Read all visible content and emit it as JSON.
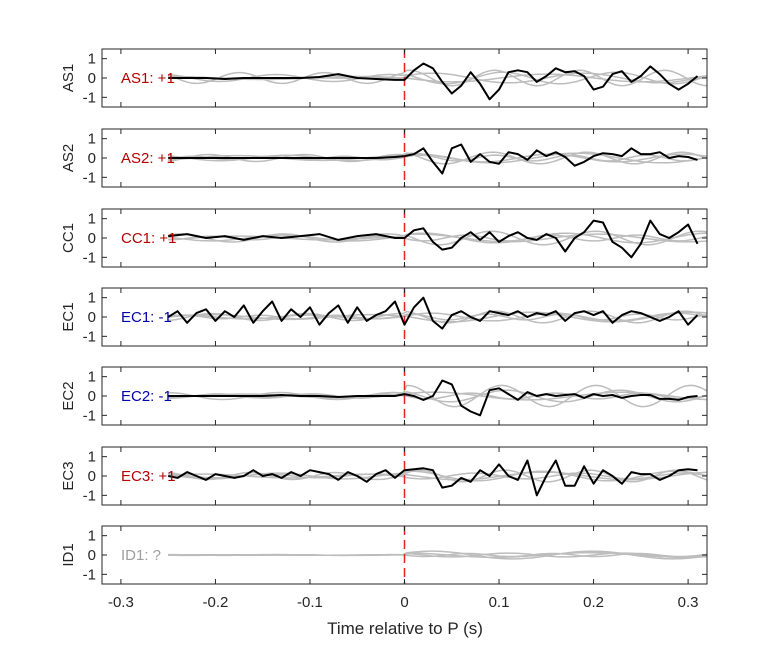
{
  "chart_data": {
    "type": "line",
    "xlabel": "Time relative to P (s)",
    "xlim": [
      -0.32,
      0.32
    ],
    "xticks": [
      -0.3,
      -0.2,
      -0.1,
      0,
      0.1,
      0.2,
      0.3
    ],
    "xtick_labels": [
      "-0.3",
      "-0.2",
      "-0.1",
      "0",
      "0.1",
      "0.2",
      "0.3"
    ],
    "ylim": [
      -1.5,
      1.5
    ],
    "yticks": [
      1,
      0,
      -1
    ],
    "ytick_labels": [
      "1",
      "0",
      "-1"
    ],
    "reference_line_x": 0,
    "colors": {
      "main": "#000000",
      "background": "#bdbdbd",
      "reference": "#e8241b",
      "positive": "#b30000",
      "negative": "#0000a8",
      "unknown": "#9e9e9e",
      "axis": "#262626"
    },
    "panels": [
      {
        "ylabel": "AS1",
        "label": "AS1: +1",
        "polarity": "positive",
        "x": [
          -0.25,
          -0.23,
          -0.21,
          -0.19,
          -0.17,
          -0.15,
          -0.13,
          -0.11,
          -0.09,
          -0.07,
          -0.05,
          -0.03,
          -0.01,
          0,
          0.01,
          0.02,
          0.03,
          0.04,
          0.05,
          0.06,
          0.07,
          0.08,
          0.09,
          0.1,
          0.11,
          0.12,
          0.13,
          0.14,
          0.15,
          0.16,
          0.17,
          0.18,
          0.19,
          0.2,
          0.21,
          0.22,
          0.23,
          0.24,
          0.25,
          0.26,
          0.27,
          0.28,
          0.29,
          0.3,
          0.31
        ],
        "y": [
          0,
          0,
          0,
          -0.05,
          0,
          0,
          0,
          0,
          0.05,
          0.2,
          0,
          -0.05,
          -0.1,
          -0.1,
          0.4,
          0.75,
          0.5,
          -0.2,
          -0.8,
          -0.4,
          0.3,
          -0.3,
          -1.1,
          -0.6,
          0.3,
          0.4,
          0.3,
          -0.2,
          0.1,
          0.5,
          0.3,
          0.35,
          0.1,
          -0.6,
          -0.45,
          0.2,
          0.35,
          -0.2,
          0.1,
          0.6,
          0.2,
          -0.3,
          -0.6,
          -0.3,
          0.1
        ],
        "background": [
          {
            "amp": 0.25,
            "period": 0.16,
            "phase": 0.4,
            "decay": 0.02
          },
          {
            "amp": 0.4,
            "period": 0.09,
            "phase": 1.2,
            "decay": 0.7
          },
          {
            "amp": 0.3,
            "period": 0.12,
            "phase": 2.4,
            "decay": 0.6
          },
          {
            "amp": 0.2,
            "period": 0.2,
            "phase": 3.1,
            "decay": 0.4
          }
        ]
      },
      {
        "ylabel": "AS2",
        "label": "AS2: +1",
        "polarity": "positive",
        "x": [
          -0.25,
          -0.23,
          -0.21,
          -0.19,
          -0.17,
          -0.15,
          -0.13,
          -0.11,
          -0.09,
          -0.07,
          -0.05,
          -0.03,
          -0.01,
          0,
          0.01,
          0.02,
          0.03,
          0.04,
          0.05,
          0.06,
          0.07,
          0.08,
          0.09,
          0.1,
          0.11,
          0.12,
          0.13,
          0.14,
          0.15,
          0.16,
          0.17,
          0.18,
          0.19,
          0.2,
          0.21,
          0.22,
          0.23,
          0.24,
          0.25,
          0.26,
          0.27,
          0.28,
          0.29,
          0.3,
          0.31
        ],
        "y": [
          0,
          0,
          0,
          0,
          0,
          0,
          0,
          0,
          0,
          0,
          0,
          0,
          0.05,
          0.1,
          0.2,
          0.5,
          -0.2,
          -0.8,
          0.5,
          0.7,
          -0.2,
          0.2,
          -0.2,
          -0.3,
          0.3,
          0.2,
          -0.1,
          0.4,
          0.1,
          0.3,
          0.05,
          -0.4,
          -0.2,
          0.1,
          0.25,
          0.2,
          0.1,
          0.5,
          0.2,
          0.2,
          0.3,
          0,
          0.1,
          0.05,
          -0.1
        ],
        "background": [
          {
            "amp": 0.2,
            "period": 0.14,
            "phase": 0.9,
            "decay": 0.7
          },
          {
            "amp": 0.3,
            "period": 0.1,
            "phase": 2.0,
            "decay": 0.6
          },
          {
            "amp": 0.25,
            "period": 0.18,
            "phase": 1.5,
            "decay": 0.5
          },
          {
            "amp": 0.15,
            "period": 0.08,
            "phase": 0.3,
            "decay": 0.6
          }
        ]
      },
      {
        "ylabel": "CC1",
        "label": "CC1: +1",
        "polarity": "positive",
        "x": [
          -0.25,
          -0.23,
          -0.21,
          -0.19,
          -0.17,
          -0.15,
          -0.13,
          -0.11,
          -0.09,
          -0.07,
          -0.05,
          -0.03,
          -0.01,
          0,
          0.01,
          0.02,
          0.03,
          0.04,
          0.05,
          0.06,
          0.07,
          0.08,
          0.09,
          0.1,
          0.11,
          0.12,
          0.13,
          0.14,
          0.15,
          0.16,
          0.17,
          0.18,
          0.19,
          0.2,
          0.21,
          0.22,
          0.23,
          0.24,
          0.25,
          0.26,
          0.27,
          0.28,
          0.29,
          0.3,
          0.31
        ],
        "y": [
          0.1,
          0.2,
          0,
          0.1,
          -0.1,
          0.1,
          0,
          0.1,
          0.2,
          -0.1,
          0.1,
          0.2,
          0,
          0,
          0.4,
          0.5,
          -0.2,
          -0.6,
          -0.5,
          0,
          0.3,
          -0.1,
          0.3,
          -0.2,
          0.1,
          0.3,
          0,
          -0.1,
          0.2,
          0,
          -0.7,
          0,
          0.3,
          0.9,
          0.8,
          -0.2,
          -0.5,
          -1,
          -0.3,
          0.9,
          0.2,
          0,
          0.3,
          0.7,
          -0.3
        ],
        "background": [
          {
            "amp": 0.25,
            "period": 0.15,
            "phase": 0.7,
            "decay": 0.6
          },
          {
            "amp": 0.35,
            "period": 0.11,
            "phase": 2.6,
            "decay": 0.6
          },
          {
            "amp": 0.2,
            "period": 0.19,
            "phase": 1.1,
            "decay": 0.5
          },
          {
            "amp": 0.15,
            "period": 0.09,
            "phase": 3.3,
            "decay": 0.6
          }
        ]
      },
      {
        "ylabel": "EC1",
        "label": "EC1: -1",
        "polarity": "negative",
        "x": [
          -0.25,
          -0.24,
          -0.23,
          -0.22,
          -0.21,
          -0.2,
          -0.19,
          -0.18,
          -0.17,
          -0.16,
          -0.15,
          -0.14,
          -0.13,
          -0.12,
          -0.11,
          -0.1,
          -0.09,
          -0.08,
          -0.07,
          -0.06,
          -0.05,
          -0.04,
          -0.03,
          -0.02,
          -0.01,
          0,
          0.01,
          0.02,
          0.03,
          0.04,
          0.05,
          0.06,
          0.07,
          0.08,
          0.09,
          0.1,
          0.11,
          0.12,
          0.13,
          0.14,
          0.15,
          0.16,
          0.17,
          0.18,
          0.19,
          0.2,
          0.21,
          0.22,
          0.23,
          0.24,
          0.25,
          0.26,
          0.27,
          0.28,
          0.29,
          0.3,
          0.31
        ],
        "y": [
          0,
          0.3,
          -0.3,
          0.2,
          0.4,
          -0.2,
          0.3,
          0,
          0.6,
          -0.3,
          0.3,
          0.8,
          -0.2,
          0.4,
          0,
          0.5,
          -0.4,
          0.2,
          0.6,
          -0.3,
          0.5,
          -0.2,
          0.1,
          0.3,
          0.8,
          -0.4,
          0.5,
          1.0,
          -0.2,
          -0.6,
          0.1,
          0.3,
          0,
          -0.2,
          0.3,
          0.2,
          0.1,
          0.3,
          0,
          0.2,
          0.1,
          0.3,
          -0.2,
          0.2,
          0.3,
          0.1,
          0.3,
          -0.3,
          0.1,
          0.3,
          0.2,
          0,
          -0.2,
          0,
          0.3,
          -0.4,
          0.1
        ],
        "background": [
          {
            "amp": 0.2,
            "period": 0.13,
            "phase": 0.2,
            "decay": 0.5
          },
          {
            "amp": 0.3,
            "period": 0.1,
            "phase": 1.8,
            "decay": 0.6
          },
          {
            "amp": 0.25,
            "period": 0.17,
            "phase": 2.9,
            "decay": 0.5
          },
          {
            "amp": 0.15,
            "period": 0.08,
            "phase": 1.0,
            "decay": 0.6
          }
        ]
      },
      {
        "ylabel": "EC2",
        "label": "EC2: -1",
        "polarity": "negative",
        "x": [
          -0.25,
          -0.23,
          -0.21,
          -0.19,
          -0.17,
          -0.15,
          -0.13,
          -0.11,
          -0.09,
          -0.07,
          -0.05,
          -0.03,
          -0.01,
          0,
          0.01,
          0.02,
          0.03,
          0.04,
          0.05,
          0.06,
          0.07,
          0.08,
          0.09,
          0.1,
          0.11,
          0.12,
          0.13,
          0.14,
          0.15,
          0.16,
          0.17,
          0.18,
          0.19,
          0.2,
          0.21,
          0.22,
          0.23,
          0.24,
          0.25,
          0.26,
          0.27,
          0.28,
          0.29,
          0.3,
          0.31
        ],
        "y": [
          0,
          0,
          0,
          0,
          0,
          0,
          0.05,
          0,
          0,
          -0.05,
          0,
          0,
          0,
          0.1,
          0,
          -0.2,
          0,
          0.8,
          0.6,
          -0.5,
          -0.8,
          -1,
          0.3,
          0.4,
          0.1,
          -0.2,
          0.2,
          0,
          0.1,
          0,
          0.05,
          0.1,
          -0.1,
          0.1,
          0,
          0.05,
          -0.1,
          0,
          0.05,
          0.05,
          -0.15,
          -0.15,
          -0.2,
          -0.05,
          0
        ],
        "background": [
          {
            "amp": 0.2,
            "period": 0.2,
            "phase": 0.6,
            "decay": 0.5
          },
          {
            "amp": 0.3,
            "period": 0.12,
            "phase": 2.2,
            "decay": 0.6
          },
          {
            "amp": 0.55,
            "period": 0.1,
            "phase": 1.4,
            "decay": 0.2
          },
          {
            "amp": 0.15,
            "period": 0.09,
            "phase": 3.0,
            "decay": 0.6
          }
        ]
      },
      {
        "ylabel": "EC3",
        "label": "EC3: +1",
        "polarity": "positive",
        "x": [
          -0.25,
          -0.24,
          -0.23,
          -0.22,
          -0.21,
          -0.2,
          -0.19,
          -0.18,
          -0.17,
          -0.16,
          -0.15,
          -0.14,
          -0.13,
          -0.12,
          -0.11,
          -0.1,
          -0.09,
          -0.08,
          -0.07,
          -0.06,
          -0.05,
          -0.04,
          -0.03,
          -0.02,
          -0.01,
          0,
          0.01,
          0.02,
          0.03,
          0.04,
          0.05,
          0.06,
          0.07,
          0.08,
          0.09,
          0.1,
          0.11,
          0.12,
          0.13,
          0.14,
          0.15,
          0.16,
          0.17,
          0.18,
          0.19,
          0.2,
          0.21,
          0.22,
          0.23,
          0.24,
          0.25,
          0.26,
          0.27,
          0.28,
          0.29,
          0.3,
          0.31
        ],
        "y": [
          0,
          -0.1,
          0.2,
          0,
          -0.2,
          0.1,
          0,
          -0.1,
          0,
          0.3,
          0,
          0.1,
          -0.1,
          0.2,
          0,
          0.3,
          0.2,
          0.1,
          -0.2,
          0.2,
          0,
          -0.3,
          0.1,
          0.3,
          -0.1,
          0.3,
          0.35,
          0.4,
          0.3,
          -0.6,
          -0.5,
          -0.1,
          -0.3,
          0.3,
          0,
          0.6,
          0,
          -0.2,
          0.8,
          -1,
          0,
          0.8,
          -0.5,
          -0.5,
          0.5,
          -0.4,
          0.3,
          0,
          -0.4,
          0.2,
          0.1,
          0.1,
          -0.2,
          0,
          0.3,
          0.35,
          0.3
        ],
        "background": [
          {
            "amp": 0.25,
            "period": 0.14,
            "phase": 1.3,
            "decay": 0.6
          },
          {
            "amp": 0.3,
            "period": 0.09,
            "phase": 0.4,
            "decay": 0.6
          },
          {
            "amp": 0.2,
            "period": 0.18,
            "phase": 2.7,
            "decay": 0.5
          },
          {
            "amp": 0.15,
            "period": 0.11,
            "phase": 3.6,
            "decay": 0.6
          }
        ]
      },
      {
        "ylabel": "ID1",
        "label": "ID1: ?",
        "polarity": "unknown",
        "x": [],
        "y": [],
        "background": [
          {
            "amp": 0.2,
            "period": 0.17,
            "phase": 0.5,
            "decay": 0.1
          },
          {
            "amp": 0.1,
            "period": 0.12,
            "phase": 2.1,
            "decay": 0.2
          },
          {
            "amp": 0.12,
            "period": 0.2,
            "phase": 1.7,
            "decay": 0.1
          },
          {
            "amp": 0.08,
            "period": 0.09,
            "phase": 3.2,
            "decay": 0.2
          }
        ]
      }
    ]
  }
}
